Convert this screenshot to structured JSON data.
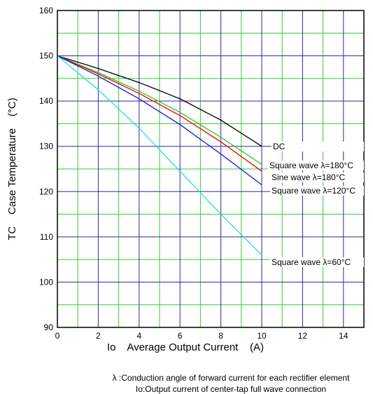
{
  "chart_data": {
    "type": "line",
    "xlabel": "Io    Average Output Current    (A)",
    "ylabel": "TC    Case Temperature    (°C)",
    "xlim": [
      0,
      15
    ],
    "ylim": [
      90,
      160
    ],
    "x_ticks": [
      "0",
      "2",
      "4",
      "6",
      "8",
      "10",
      "12",
      "14"
    ],
    "y_ticks": [
      "90",
      "100",
      "110",
      "120",
      "130",
      "140",
      "150",
      "160"
    ],
    "minor_grid_color": "#33cc33",
    "major_grid_color": "#2a2aa0",
    "series": [
      {
        "name": "DC",
        "color": "#000000",
        "x": [
          0,
          2,
          4,
          6,
          8,
          10
        ],
        "y": [
          150,
          147.2,
          144.1,
          140.5,
          135.8,
          130
        ]
      },
      {
        "name": "Square wave λ=180°C",
        "color": "#22cc22",
        "x": [
          0,
          2,
          4,
          6,
          8,
          10
        ],
        "y": [
          150,
          146.3,
          142.2,
          137.5,
          132,
          126
        ]
      },
      {
        "name": "Sine wave λ=180°C",
        "color": "#ee0000",
        "x": [
          0,
          2,
          4,
          6,
          8,
          10
        ],
        "y": [
          150,
          146,
          141.7,
          136.8,
          131,
          124.5
        ]
      },
      {
        "name": "Square wave λ=120°C",
        "color": "#1a1acc",
        "x": [
          0,
          2,
          4,
          6,
          8,
          10
        ],
        "y": [
          150,
          145.5,
          140.5,
          134.8,
          128.3,
          121.5
        ]
      },
      {
        "name": "Square wave λ=60°C",
        "color": "#22dddd",
        "x": [
          0,
          2,
          4,
          6,
          8,
          10
        ],
        "y": [
          150,
          142.5,
          134,
          124.5,
          115,
          106
        ]
      }
    ]
  },
  "notes": {
    "line1": "λ :Conduction angle of forward current for each rectifier element",
    "line2": "Io:Output current of center-tap full wave connection"
  }
}
